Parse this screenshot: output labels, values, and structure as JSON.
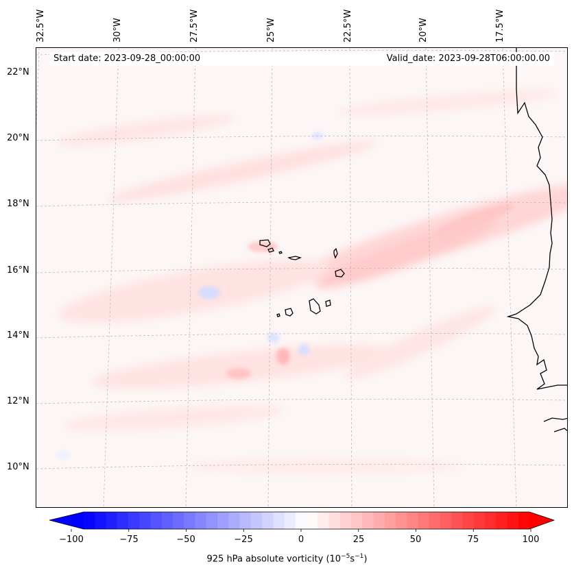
{
  "header": {
    "start_date": "Start date: 2023-09-28_00:00:00",
    "valid_date": "Valid_date: 2023-09-28T06:00:00.00"
  },
  "axes": {
    "lon_labels": [
      "32.5°W",
      "30°W",
      "27.5°W",
      "25°W",
      "22.5°W",
      "20°W",
      "17.5°W"
    ],
    "lat_labels": [
      "22°N",
      "20°N",
      "18°N",
      "16°N",
      "14°N",
      "12°N",
      "10°N"
    ]
  },
  "colorbar": {
    "ticks": [
      "−100",
      "−75",
      "−50",
      "−25",
      "0",
      "25",
      "50",
      "75",
      "100"
    ],
    "label_main": "925 hPa absolute vorticity (10",
    "label_exp1": "−5",
    "label_mid": "s",
    "label_exp2": "−1",
    "label_end": ")",
    "colormap": "bwr",
    "min_color": "#0000ff",
    "mid_color": "#ffffff",
    "max_color": "#ff0000"
  },
  "map": {
    "coastline_color": "#000000",
    "gridline_color": "#bbbbbb",
    "background_tint": "#fdf6f6"
  }
}
